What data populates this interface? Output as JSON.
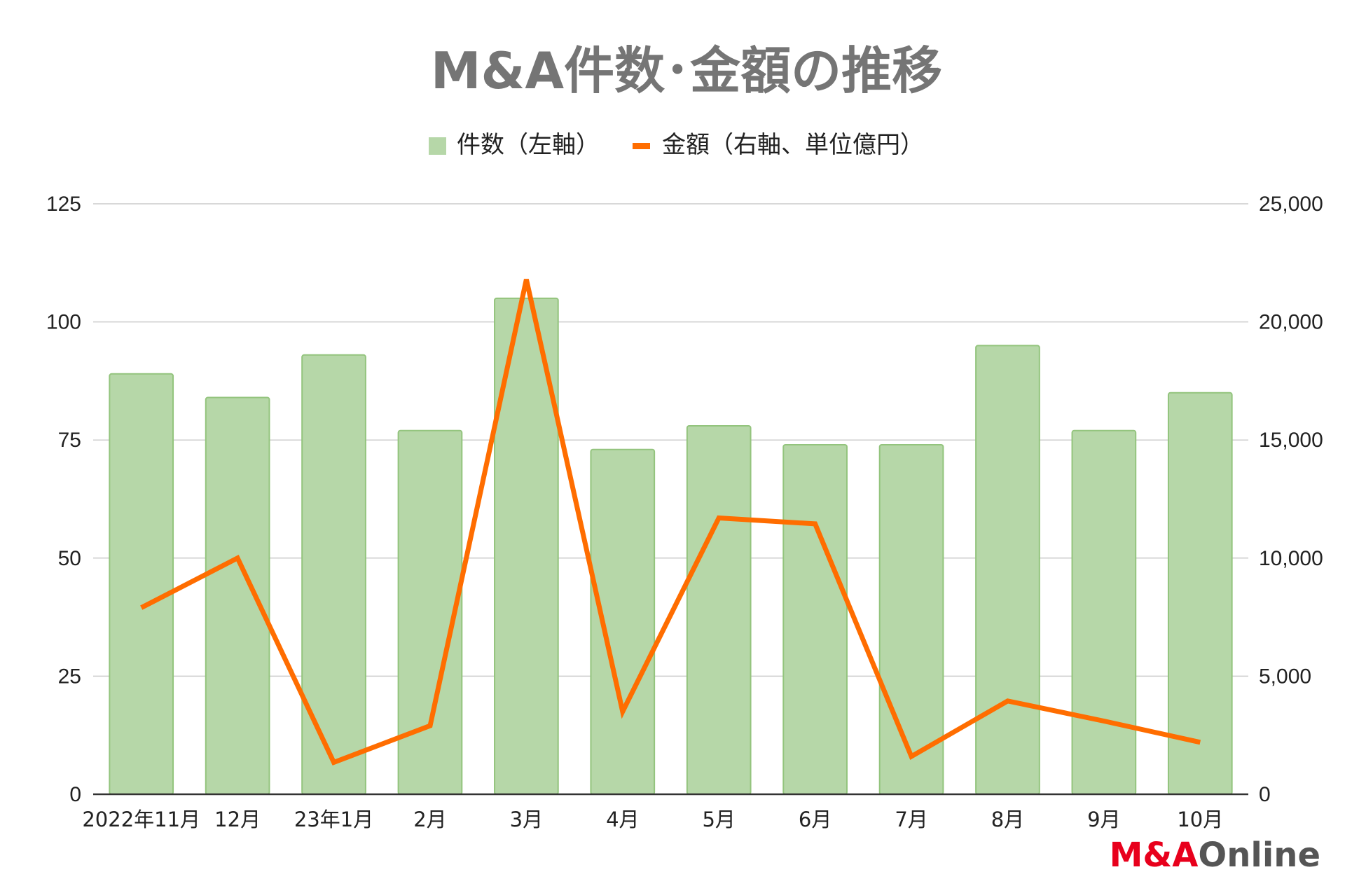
{
  "chart_data": {
    "type": "bar",
    "title": "M&A件数･金額の推移",
    "categories": [
      "2022年11月",
      "12月",
      "23年1月",
      "2月",
      "3月",
      "4月",
      "5月",
      "6月",
      "7月",
      "8月",
      "9月",
      "10月"
    ],
    "series": [
      {
        "name": "件数（左軸）",
        "type": "bar",
        "axis": "left",
        "color": "#b6d7a8",
        "edge_color": "#93c47d",
        "values": [
          89,
          84,
          93,
          77,
          105,
          73,
          78,
          74,
          74,
          95,
          77,
          85
        ]
      },
      {
        "name": "金額（右軸、単位億円）",
        "type": "line",
        "axis": "right",
        "color": "#ff6d00",
        "values": [
          7900,
          10000,
          1350,
          2900,
          21800,
          3500,
          11700,
          11450,
          1600,
          3950,
          3100,
          2200
        ]
      }
    ],
    "left_axis": {
      "ylim": [
        0,
        125
      ],
      "ticks": [
        "0",
        "25",
        "50",
        "75",
        "100",
        "125"
      ]
    },
    "right_axis": {
      "ylim": [
        0,
        25000
      ],
      "ticks": [
        "0",
        "5,000",
        "10,000",
        "15,000",
        "20,000",
        "25,000"
      ]
    },
    "grid": true,
    "legend_position": "top-center"
  },
  "branding": {
    "logo_text": "M&AOnline",
    "logo_part1": "M&A",
    "logo_part2": "Online",
    "logo_color1": "#e8001c",
    "logo_color2": "#555555"
  }
}
